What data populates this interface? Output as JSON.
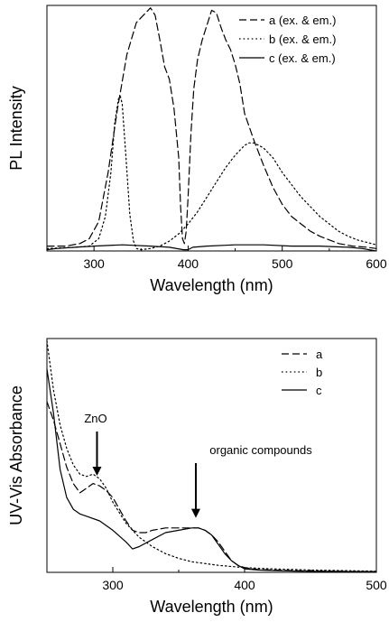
{
  "chart_data": [
    {
      "id": "pl",
      "type": "line",
      "xlabel": "Wavelength (nm)",
      "ylabel": "PL Intensity",
      "xlim": [
        250,
        600
      ],
      "ylim": [
        0,
        1
      ],
      "xticks": [
        300,
        400,
        500,
        600
      ],
      "yticks_shown": false,
      "grid": false,
      "legend": {
        "placement": "top-right",
        "entries": [
          {
            "label": "a (ex. & em.)",
            "dash": "dashed"
          },
          {
            "label": "b (ex. & em.)",
            "dash": "dotted"
          },
          {
            "label": "c (ex. & em.)",
            "dash": "solid"
          }
        ]
      },
      "series": [
        {
          "name": "a (ex. & em.)",
          "dash": "dashed",
          "x": [
            250,
            270,
            285,
            295,
            305,
            315,
            325,
            335,
            345,
            355,
            360,
            365,
            370,
            375,
            380,
            385,
            390,
            392,
            394,
            396,
            398,
            400,
            403,
            406,
            410,
            415,
            420,
            425,
            430,
            435,
            440,
            445,
            450,
            455,
            460,
            470,
            480,
            490,
            500,
            510,
            520,
            530,
            540,
            550,
            560,
            575,
            590,
            600
          ],
          "y": [
            0.02,
            0.02,
            0.03,
            0.05,
            0.12,
            0.32,
            0.58,
            0.8,
            0.93,
            0.97,
            0.99,
            0.96,
            0.86,
            0.75,
            0.7,
            0.58,
            0.38,
            0.18,
            0.05,
            0.03,
            0.08,
            0.22,
            0.48,
            0.66,
            0.78,
            0.86,
            0.92,
            0.98,
            0.97,
            0.91,
            0.86,
            0.82,
            0.76,
            0.68,
            0.56,
            0.45,
            0.35,
            0.26,
            0.19,
            0.14,
            0.11,
            0.08,
            0.06,
            0.045,
            0.03,
            0.02,
            0.015,
            0.01
          ]
        },
        {
          "name": "b (ex. & em.)",
          "dash": "dotted",
          "x": [
            250,
            280,
            295,
            305,
            312,
            318,
            322,
            326,
            328,
            330,
            334,
            338,
            342,
            345,
            350,
            360,
            370,
            380,
            390,
            400,
            410,
            420,
            430,
            440,
            450,
            460,
            465,
            470,
            480,
            490,
            500,
            510,
            520,
            530,
            540,
            550,
            560,
            570,
            580,
            590,
            600
          ],
          "y": [
            0.01,
            0.015,
            0.02,
            0.05,
            0.14,
            0.32,
            0.52,
            0.62,
            0.63,
            0.6,
            0.38,
            0.15,
            0.04,
            0.01,
            0.005,
            0.01,
            0.02,
            0.04,
            0.07,
            0.11,
            0.16,
            0.22,
            0.28,
            0.34,
            0.39,
            0.43,
            0.44,
            0.44,
            0.42,
            0.38,
            0.32,
            0.27,
            0.22,
            0.18,
            0.14,
            0.11,
            0.08,
            0.06,
            0.045,
            0.035,
            0.025
          ]
        },
        {
          "name": "c (ex. & em.)",
          "dash": "solid",
          "x": [
            250,
            260,
            280,
            300,
            330,
            360,
            380,
            395,
            400,
            405,
            420,
            450,
            480,
            510,
            540,
            570,
            585,
            600
          ],
          "y": [
            0.005,
            0.01,
            0.015,
            0.02,
            0.025,
            0.02,
            0.015,
            0.005,
            0.005,
            0.015,
            0.02,
            0.025,
            0.025,
            0.02,
            0.02,
            0.015,
            0.01,
            0.0
          ]
        }
      ]
    },
    {
      "id": "uv",
      "type": "line",
      "xlabel": "Wavelength (nm)",
      "ylabel": "UV-Vis Absorbance",
      "xlim": [
        250,
        500
      ],
      "ylim": [
        0,
        1
      ],
      "xticks": [
        300,
        400,
        500
      ],
      "yticks_shown": false,
      "grid": false,
      "legend": {
        "placement": "top-right",
        "entries": [
          {
            "label": "a",
            "dash": "dashed"
          },
          {
            "label": "b",
            "dash": "dotted"
          },
          {
            "label": "c",
            "dash": "solid"
          }
        ]
      },
      "annotations": [
        {
          "text": "ZnO",
          "x": 288,
          "y": 0.39
        },
        {
          "text": "organic compounds",
          "x": 363,
          "y": 0.21
        }
      ],
      "series": [
        {
          "name": "a",
          "dash": "dashed",
          "x": [
            250,
            255,
            260,
            265,
            270,
            275,
            280,
            285,
            290,
            295,
            300,
            305,
            310,
            315,
            320,
            325,
            330,
            340,
            350,
            360,
            365,
            370,
            375,
            380,
            385,
            390,
            395,
            400,
            410,
            420,
            440,
            460,
            480,
            500
          ],
          "y": [
            0.73,
            0.65,
            0.55,
            0.45,
            0.38,
            0.34,
            0.36,
            0.38,
            0.37,
            0.35,
            0.32,
            0.27,
            0.22,
            0.18,
            0.17,
            0.17,
            0.18,
            0.19,
            0.19,
            0.19,
            0.19,
            0.18,
            0.16,
            0.13,
            0.09,
            0.05,
            0.03,
            0.02,
            0.012,
            0.01,
            0.007,
            0.005,
            0.004,
            0.003
          ]
        },
        {
          "name": "b",
          "dash": "dotted",
          "x": [
            250,
            255,
            260,
            265,
            270,
            275,
            280,
            285,
            290,
            295,
            300,
            310,
            320,
            330,
            340,
            350,
            360,
            380,
            400,
            420,
            450,
            480,
            500
          ],
          "y": [
            0.99,
            0.78,
            0.63,
            0.53,
            0.46,
            0.42,
            0.41,
            0.42,
            0.4,
            0.36,
            0.3,
            0.21,
            0.15,
            0.11,
            0.08,
            0.06,
            0.045,
            0.03,
            0.02,
            0.015,
            0.01,
            0.007,
            0.005
          ]
        },
        {
          "name": "c",
          "dash": "solid",
          "x": [
            250,
            255,
            260,
            265,
            270,
            275,
            280,
            290,
            300,
            310,
            315,
            320,
            330,
            340,
            350,
            360,
            365,
            370,
            375,
            380,
            385,
            390,
            395,
            400,
            410,
            420,
            440,
            460,
            480,
            500
          ],
          "y": [
            0.87,
            0.68,
            0.44,
            0.32,
            0.27,
            0.25,
            0.24,
            0.22,
            0.18,
            0.13,
            0.1,
            0.11,
            0.14,
            0.17,
            0.18,
            0.19,
            0.19,
            0.18,
            0.16,
            0.12,
            0.08,
            0.05,
            0.03,
            0.015,
            0.01,
            0.008,
            0.005,
            0.004,
            0.003,
            0.003
          ]
        }
      ]
    }
  ]
}
